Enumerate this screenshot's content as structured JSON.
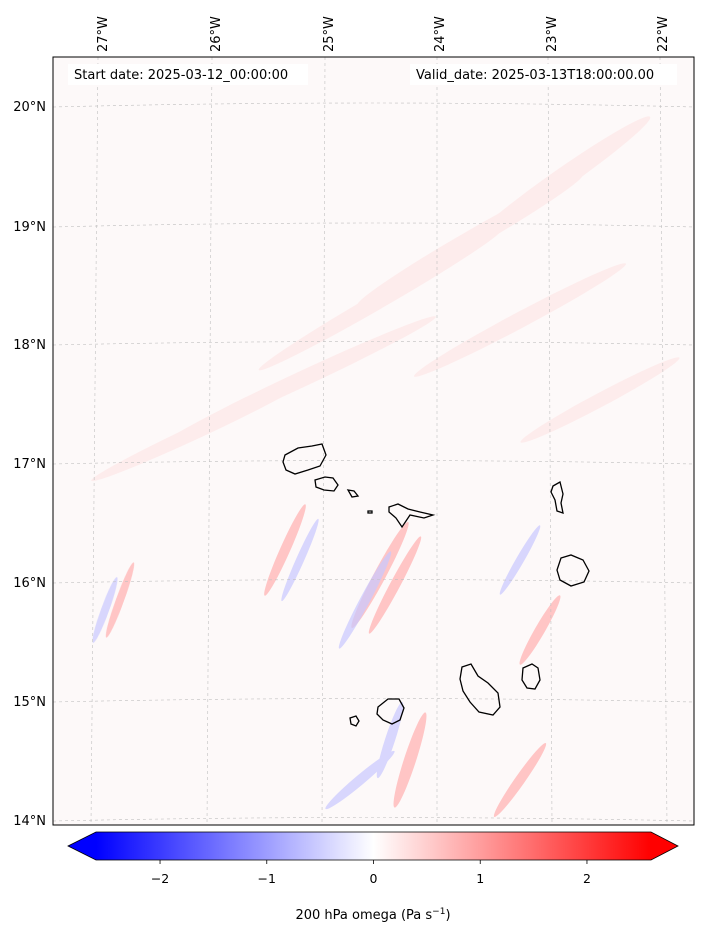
{
  "header": {
    "start_date": "Start date: 2025-03-12_00:00:00",
    "valid_date": "Valid_date: 2025-03-13T18:00:00.00"
  },
  "map": {
    "lon_labels": [
      "27°W",
      "26°W",
      "25°W",
      "24°W",
      "23°W",
      "22°W"
    ],
    "lat_labels": [
      "20°N",
      "19°N",
      "18°N",
      "17°N",
      "16°N",
      "15°N",
      "14°N"
    ],
    "gridlines": true
  },
  "colorbar": {
    "label": "200 hPa omega (Pa s",
    "label_exponent": "−1",
    "label_close": ")",
    "tick_labels": [
      "−2",
      "−1",
      "0",
      "1",
      "2"
    ],
    "tick_values": [
      -2,
      -1,
      0,
      1,
      2
    ],
    "range": [
      -2.6,
      2.6
    ],
    "extend": "both",
    "colormap": "bwr",
    "color_min": "#0000ff",
    "color_mid": "#ffffff",
    "color_max": "#ff0000"
  }
}
